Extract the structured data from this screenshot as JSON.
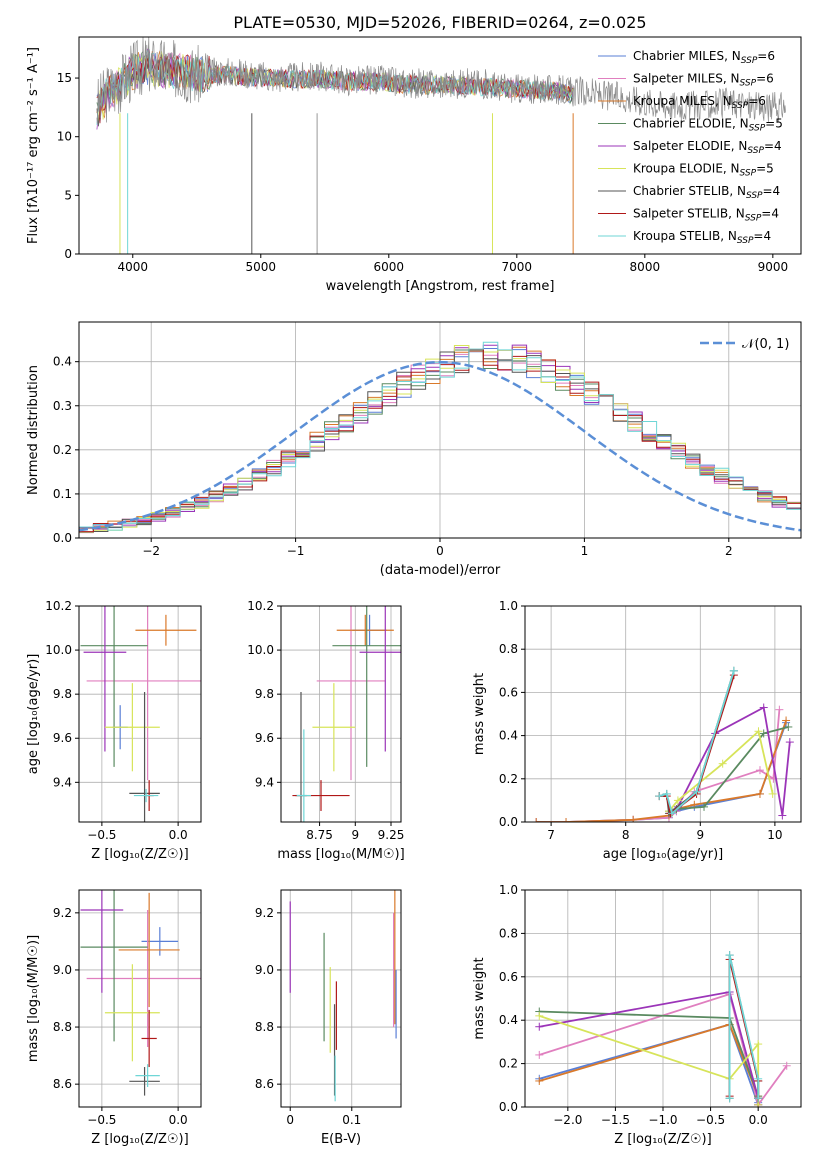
{
  "figure_title": "PLATE=0530, MJD=52026, FIBERID=0264, z=0.025",
  "colors": [
    "#5a7fd6",
    "#e07fbf",
    "#d9792a",
    "#5a8a60",
    "#9b34b8",
    "#d7e45a",
    "#555555",
    "#b01818",
    "#6fd6d6"
  ],
  "chart_data": [
    {
      "type": "line",
      "xlabel": "wavelength [Angstrom, rest frame]",
      "ylabel": "Flux [fλ10⁻¹⁷ erg cm⁻² s⁻¹ A⁻¹]",
      "xlim": [
        3580,
        9220
      ],
      "ylim": [
        0,
        18.5
      ],
      "xticks": [
        4000,
        5000,
        6000,
        7000,
        8000,
        9000
      ],
      "yticks": [
        0,
        5,
        10,
        15
      ],
      "grid": false,
      "legend_position": "upper-right",
      "data_note": "observed spectrum (grey) and model fits; lines end near 7450 A",
      "observed": {
        "x": [
          3720,
          3800,
          3900,
          4000,
          4100,
          4200,
          4300,
          4400,
          4500,
          4700,
          4900,
          5100,
          5300,
          5500,
          5700,
          5900,
          6100,
          6300,
          6500,
          6700,
          6900,
          7100,
          7300,
          7500,
          7700,
          7900,
          8100,
          8300,
          8500,
          8700,
          8900,
          9100
        ],
        "y": [
          12.5,
          13.8,
          14.5,
          15.6,
          16.2,
          16.0,
          15.8,
          15.6,
          15.2,
          15.6,
          15.4,
          15.0,
          15.1,
          15.1,
          14.8,
          14.9,
          14.6,
          14.5,
          14.5,
          14.6,
          14.2,
          14.0,
          14.0,
          13.8,
          13.5,
          13.2,
          12.8,
          12.6,
          12.7,
          12.9,
          12.5,
          12.6
        ]
      },
      "model": {
        "x": [
          3720,
          3800,
          3900,
          4000,
          4100,
          4200,
          4300,
          4400,
          4500,
          4700,
          4900,
          5100,
          5300,
          5500,
          5700,
          5900,
          6100,
          6300,
          6500,
          6700,
          6900,
          7100,
          7300,
          7440
        ],
        "y": [
          12.2,
          13.5,
          14.4,
          15.5,
          15.9,
          15.8,
          15.7,
          15.5,
          15.3,
          15.3,
          15.1,
          15.0,
          14.9,
          14.9,
          14.7,
          14.7,
          14.5,
          14.4,
          14.4,
          14.3,
          14.1,
          14.0,
          13.9,
          13.6
        ]
      },
      "series": [
        {
          "name": "Chabrier MILES, N",
          "ssp": "=6"
        },
        {
          "name": "Salpeter MILES, N",
          "ssp": "=6"
        },
        {
          "name": "Kroupa MILES, N",
          "ssp": "=6"
        },
        {
          "name": "Chabrier ELODIE, N",
          "ssp": "=5"
        },
        {
          "name": "Salpeter ELODIE, N",
          "ssp": "=4"
        },
        {
          "name": "Kroupa ELODIE, N",
          "ssp": "=5"
        },
        {
          "name": "Chabrier STELIB, N",
          "ssp": "=4"
        },
        {
          "name": "Salpeter STELIB, N",
          "ssp": "=4"
        },
        {
          "name": "Kroupa STELIB, N",
          "ssp": "=4"
        }
      ],
      "ssp_sub": "SSP"
    },
    {
      "type": "line",
      "xlabel": "(data-model)/error",
      "ylabel": "Normed distribution",
      "xlim": [
        -2.5,
        2.5
      ],
      "ylim": [
        0,
        0.49
      ],
      "xticks": [
        -2,
        -1,
        0,
        1,
        2
      ],
      "yticks": [
        0.0,
        0.1,
        0.2,
        0.3,
        0.4
      ],
      "grid": true,
      "legend_position": "upper-right",
      "reference_label": "𝒩(0, 1)",
      "histogram_bins": {
        "start": -2.5,
        "width": 0.1
      },
      "histogram_mean": [
        0.019,
        0.023,
        0.028,
        0.034,
        0.041,
        0.049,
        0.058,
        0.069,
        0.081,
        0.094,
        0.108,
        0.124,
        0.141,
        0.159,
        0.178,
        0.198,
        0.219,
        0.241,
        0.263,
        0.285,
        0.306,
        0.327,
        0.347,
        0.365,
        0.381,
        0.394,
        0.405,
        0.412,
        0.414,
        0.412,
        0.405,
        0.394,
        0.381,
        0.365,
        0.347,
        0.327,
        0.306,
        0.285,
        0.263,
        0.241,
        0.219,
        0.198,
        0.178,
        0.159,
        0.141,
        0.124,
        0.108,
        0.094,
        0.081,
        0.069
      ]
    },
    {
      "type": "scatter",
      "xlabel": "Z [log₁₀(Z/Z☉)]",
      "ylabel": "age  [log₁₀(age/yr)]",
      "xlim": [
        -0.65,
        0.15
      ],
      "ylim": [
        9.22,
        10.2
      ],
      "xticks": [
        -0.5,
        0.0
      ],
      "xticklabels": [
        "−0.5",
        "0.0"
      ],
      "yticks": [
        9.4,
        9.6,
        9.8,
        10.0,
        10.2
      ],
      "grid": true,
      "points": [
        {
          "x": -0.38,
          "y": 9.65,
          "xerr": 0.05,
          "yerr": 0.1
        },
        {
          "x": -0.2,
          "y": 9.86,
          "xerr": 0.4,
          "yerr": 0.45
        },
        {
          "x": -0.08,
          "y": 10.09,
          "xerr": 0.2,
          "yerr": 0.07
        },
        {
          "x": -0.42,
          "y": 10.02,
          "xerr": 0.22,
          "yerr": 0.55
        },
        {
          "x": -0.48,
          "y": 9.99,
          "xerr": 0.14,
          "yerr": 0.45
        },
        {
          "x": -0.3,
          "y": 9.65,
          "xerr": 0.18,
          "yerr": 0.2
        },
        {
          "x": -0.22,
          "y": 9.35,
          "xerr": 0.1,
          "yerr": 0.46
        },
        {
          "x": -0.19,
          "y": 9.34,
          "xerr": 0.03,
          "yerr": 0.07
        },
        {
          "x": -0.21,
          "y": 9.34,
          "xerr": 0.08,
          "yerr": 0.03
        }
      ]
    },
    {
      "type": "scatter",
      "xlabel": "mass [log₁₀(M/M☉)]",
      "ylabel": "",
      "xlim": [
        8.48,
        9.32
      ],
      "ylim": [
        9.22,
        10.2
      ],
      "xticks": [
        8.75,
        9.0,
        9.25
      ],
      "yticks": [
        9.4,
        9.6,
        9.8,
        10.0,
        10.2
      ],
      "grid": true,
      "points": [
        {
          "x": 9.1,
          "y": 10.09,
          "xerr": 0.12,
          "yerr": 0.07
        },
        {
          "x": 8.97,
          "y": 9.86,
          "xerr": 0.24,
          "yerr": 0.45
        },
        {
          "x": 9.07,
          "y": 10.09,
          "xerr": 0.2,
          "yerr": 0.07
        },
        {
          "x": 9.08,
          "y": 10.02,
          "xerr": 0.24,
          "yerr": 0.55
        },
        {
          "x": 9.21,
          "y": 9.99,
          "xerr": 0.18,
          "yerr": 0.45
        },
        {
          "x": 8.85,
          "y": 9.65,
          "xerr": 0.15,
          "yerr": 0.2
        },
        {
          "x": 8.62,
          "y": 9.34,
          "xerr": 0.04,
          "yerr": 0.47
        },
        {
          "x": 8.76,
          "y": 9.34,
          "xerr": 0.2,
          "yerr": 0.07
        },
        {
          "x": 8.64,
          "y": 9.34,
          "xerr": 0.05,
          "yerr": 0.3
        }
      ]
    },
    {
      "type": "line",
      "xlabel": "age  [log₁₀(age/yr)]",
      "ylabel": "mass weight",
      "xlim": [
        6.65,
        10.35
      ],
      "ylim": [
        0,
        1
      ],
      "xticks": [
        7,
        8,
        9,
        10
      ],
      "yticks": [
        0.0,
        0.2,
        0.4,
        0.6,
        0.8,
        1.0
      ],
      "grid": true,
      "series": [
        {
          "x": [
            6.8,
            7.2,
            8.1,
            8.58,
            8.68,
            8.92,
            9.8,
            10.15
          ],
          "y": [
            0.0,
            0.0,
            0.01,
            0.02,
            0.05,
            0.07,
            0.13,
            0.46
          ]
        },
        {
          "x": [
            6.8,
            7.2,
            8.1,
            8.58,
            8.68,
            8.92,
            9.8,
            9.98,
            10.06
          ],
          "y": [
            0.0,
            0.0,
            0.01,
            0.02,
            0.05,
            0.14,
            0.24,
            0.2,
            0.52
          ]
        },
        {
          "x": [
            6.8,
            7.2,
            8.1,
            8.58,
            8.68,
            8.92,
            9.8,
            10.15
          ],
          "y": [
            0.0,
            0.0,
            0.01,
            0.03,
            0.06,
            0.08,
            0.13,
            0.47
          ]
        },
        {
          "x": [
            8.58,
            8.68,
            9.05,
            9.85,
            10.18
          ],
          "y": [
            0.05,
            0.06,
            0.07,
            0.41,
            0.44
          ]
        },
        {
          "x": [
            8.6,
            8.7,
            9.2,
            9.85,
            10.1,
            10.2
          ],
          "y": [
            0.04,
            0.07,
            0.41,
            0.53,
            0.03,
            0.37
          ]
        },
        {
          "x": [
            8.58,
            8.7,
            9.3,
            9.78,
            9.97
          ],
          "y": [
            0.05,
            0.1,
            0.27,
            0.42,
            0.13
          ]
        },
        {
          "x": [
            8.45,
            8.55,
            8.58,
            8.95,
            9.45
          ],
          "y": [
            0.12,
            0.13,
            0.04,
            0.14,
            0.7
          ]
        },
        {
          "x": [
            8.45,
            8.55,
            8.6,
            8.95,
            9.45
          ],
          "y": [
            0.12,
            0.12,
            0.04,
            0.13,
            0.68
          ]
        },
        {
          "x": [
            8.45,
            8.55,
            8.62,
            8.95,
            9.45
          ],
          "y": [
            0.12,
            0.13,
            0.04,
            0.14,
            0.7
          ]
        }
      ]
    },
    {
      "type": "scatter",
      "xlabel": "Z [log₁₀(Z/Z☉)]",
      "ylabel": "mass [log₁₀(M/M☉)]",
      "xlim": [
        -0.65,
        0.15
      ],
      "ylim": [
        8.52,
        9.28
      ],
      "xticks": [
        -0.5,
        0.0
      ],
      "xticklabels": [
        "−0.5",
        "0.0"
      ],
      "yticks": [
        8.6,
        8.8,
        9.0,
        9.2
      ],
      "grid": true,
      "points": [
        {
          "x": -0.12,
          "y": 9.1,
          "xerr": 0.12,
          "yerr": 0.05
        },
        {
          "x": -0.2,
          "y": 8.97,
          "xerr": 0.4,
          "yerr": 0.24
        },
        {
          "x": -0.19,
          "y": 9.07,
          "xerr": 0.2,
          "yerr": 0.2
        },
        {
          "x": -0.42,
          "y": 9.08,
          "xerr": 0.22,
          "yerr": 0.33
        },
        {
          "x": -0.5,
          "y": 9.21,
          "xerr": 0.14,
          "yerr": 0.29
        },
        {
          "x": -0.3,
          "y": 8.85,
          "xerr": 0.18,
          "yerr": 0.17
        },
        {
          "x": -0.22,
          "y": 8.61,
          "xerr": 0.1,
          "yerr": 0.05
        },
        {
          "x": -0.19,
          "y": 8.76,
          "xerr": 0.05,
          "yerr": 0.1
        },
        {
          "x": -0.2,
          "y": 8.63,
          "xerr": 0.08,
          "yerr": 0.04
        }
      ]
    },
    {
      "type": "scatter",
      "xlabel": "E(B-V)",
      "ylabel": "",
      "xlim": [
        -0.015,
        0.18
      ],
      "ylim": [
        8.52,
        9.28
      ],
      "xticks": [
        0.0,
        0.1
      ],
      "yticks": [
        8.6,
        8.8,
        9.0,
        9.2
      ],
      "grid": true,
      "points": [
        {
          "x": 0.172,
          "y": 8.88,
          "yerr": 0.12
        },
        {
          "x": 0.168,
          "y": 9.0,
          "yerr": 0.2
        },
        {
          "x": 0.17,
          "y": 9.06,
          "yerr": 0.25
        },
        {
          "x": 0.055,
          "y": 8.94,
          "yerr": 0.19
        },
        {
          "x": 0.0,
          "y": 9.08,
          "yerr": 0.16
        },
        {
          "x": 0.065,
          "y": 8.86,
          "yerr": 0.15
        },
        {
          "x": 0.072,
          "y": 8.72,
          "yerr": 0.16
        },
        {
          "x": 0.075,
          "y": 8.84,
          "yerr": 0.12
        },
        {
          "x": 0.073,
          "y": 8.62,
          "yerr": 0.08
        }
      ]
    },
    {
      "type": "line",
      "xlabel": "Z [log₁₀(Z/Z☉)]",
      "ylabel": "mass weight",
      "xlim": [
        -2.45,
        0.45
      ],
      "ylim": [
        0,
        1
      ],
      "xticks": [
        -2.0,
        -1.5,
        -1.0,
        -0.5,
        0.0
      ],
      "xticklabels": [
        "−2.0",
        "−1.5",
        "−1.0",
        "−0.5",
        "0.0"
      ],
      "yticks": [
        0.0,
        0.2,
        0.4,
        0.6,
        0.8,
        1.0
      ],
      "grid": true,
      "series": [
        {
          "x": [
            -2.3,
            -0.3,
            0.0,
            0.0
          ],
          "y": [
            0.13,
            0.38,
            0.01,
            0.02
          ]
        },
        {
          "x": [
            -2.3,
            -0.3,
            0.0,
            0.3
          ],
          "y": [
            0.24,
            0.52,
            0.01,
            0.19
          ]
        },
        {
          "x": [
            -2.3,
            -0.3,
            0.0,
            0.0
          ],
          "y": [
            0.12,
            0.38,
            0.05,
            0.0
          ]
        },
        {
          "x": [
            -2.3,
            -0.3,
            0.0,
            0.0
          ],
          "y": [
            0.44,
            0.41,
            0.05,
            0.12
          ]
        },
        {
          "x": [
            -2.3,
            -0.3,
            0.0,
            0.0
          ],
          "y": [
            0.37,
            0.53,
            0.04,
            0.01
          ]
        },
        {
          "x": [
            -2.3,
            -0.3,
            0.0,
            0.0
          ],
          "y": [
            0.42,
            0.13,
            0.29,
            0.01
          ]
        },
        {
          "x": [
            -0.3,
            -0.3,
            0.0,
            0.0
          ],
          "y": [
            0.04,
            0.7,
            0.12,
            0.04
          ]
        },
        {
          "x": [
            -0.3,
            -0.3,
            0.0,
            0.0
          ],
          "y": [
            0.05,
            0.68,
            0.12,
            0.04
          ]
        },
        {
          "x": [
            -0.3,
            -0.3,
            0.0,
            0.0
          ],
          "y": [
            0.04,
            0.7,
            0.13,
            0.04
          ]
        }
      ]
    }
  ]
}
